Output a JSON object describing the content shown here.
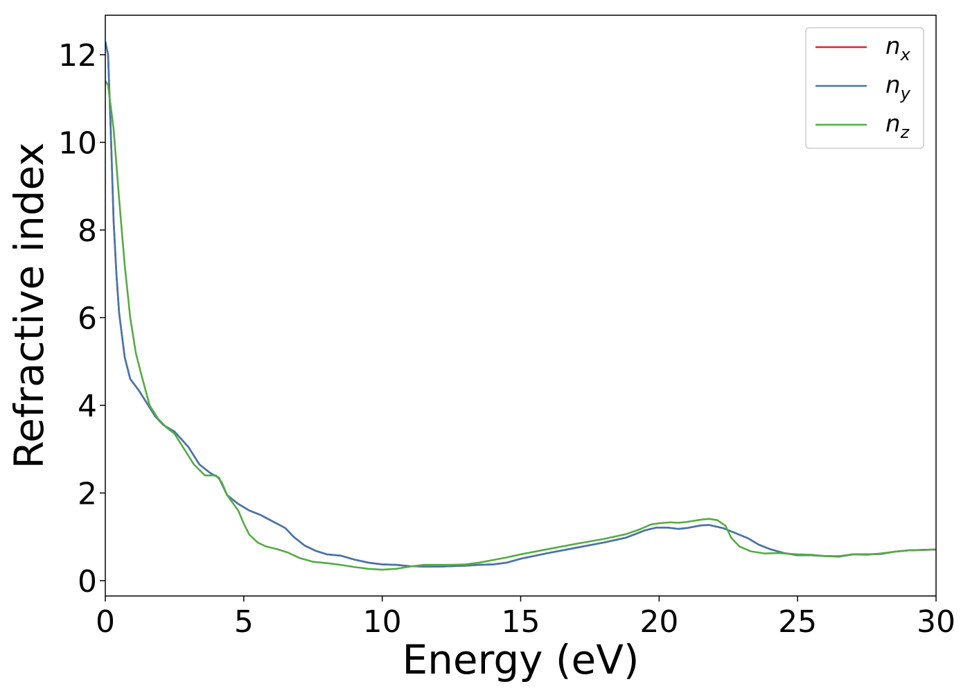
{
  "chart_data": {
    "type": "line",
    "title": "",
    "xlabel": "Energy (eV)",
    "ylabel": "Refractive index",
    "xlim": [
      0,
      30
    ],
    "ylim": [
      -0.35,
      12.9
    ],
    "xticks": [
      0,
      5,
      10,
      15,
      20,
      25,
      30
    ],
    "yticks": [
      0,
      2,
      4,
      6,
      8,
      10,
      12
    ],
    "xtick_labels": [
      "0",
      "5",
      "10",
      "15",
      "20",
      "25",
      "30"
    ],
    "ytick_labels": [
      "0",
      "2",
      "4",
      "6",
      "8",
      "10",
      "12"
    ],
    "grid": false,
    "legend": {
      "position": "top-right"
    },
    "series": [
      {
        "name": "n",
        "subscript": "x",
        "color": "#d62728",
        "points": [
          [
            0,
            12.3
          ],
          [
            0.1,
            12.0
          ],
          [
            0.2,
            10.2
          ],
          [
            0.3,
            8.2
          ],
          [
            0.4,
            7.0
          ],
          [
            0.5,
            6.1
          ],
          [
            0.7,
            5.1
          ],
          [
            0.9,
            4.6
          ],
          [
            1.2,
            4.35
          ],
          [
            1.5,
            4.05
          ],
          [
            1.8,
            3.75
          ],
          [
            2.1,
            3.55
          ],
          [
            2.5,
            3.4
          ],
          [
            3.0,
            3.05
          ],
          [
            3.4,
            2.65
          ],
          [
            3.8,
            2.45
          ],
          [
            4.1,
            2.35
          ],
          [
            4.4,
            1.95
          ],
          [
            4.8,
            1.75
          ],
          [
            5.2,
            1.6
          ],
          [
            5.6,
            1.5
          ],
          [
            5.9,
            1.4
          ],
          [
            6.2,
            1.3
          ],
          [
            6.5,
            1.2
          ],
          [
            6.8,
            1.0
          ],
          [
            7.2,
            0.8
          ],
          [
            7.6,
            0.68
          ],
          [
            8.0,
            0.6
          ],
          [
            8.5,
            0.57
          ],
          [
            9.0,
            0.48
          ],
          [
            9.5,
            0.41
          ],
          [
            10.0,
            0.37
          ],
          [
            10.5,
            0.36
          ],
          [
            11.0,
            0.33
          ],
          [
            11.5,
            0.32
          ],
          [
            12.0,
            0.32
          ],
          [
            12.5,
            0.33
          ],
          [
            13.0,
            0.34
          ],
          [
            13.5,
            0.36
          ],
          [
            14.0,
            0.37
          ],
          [
            14.5,
            0.41
          ],
          [
            15.0,
            0.5
          ],
          [
            16.0,
            0.63
          ],
          [
            17.0,
            0.75
          ],
          [
            18.0,
            0.87
          ],
          [
            18.8,
            0.98
          ],
          [
            19.5,
            1.15
          ],
          [
            19.9,
            1.21
          ],
          [
            20.3,
            1.21
          ],
          [
            20.7,
            1.18
          ],
          [
            21.0,
            1.2
          ],
          [
            21.5,
            1.26
          ],
          [
            21.8,
            1.27
          ],
          [
            22.3,
            1.2
          ],
          [
            22.7,
            1.1
          ],
          [
            23.2,
            0.97
          ],
          [
            23.6,
            0.82
          ],
          [
            24.0,
            0.72
          ],
          [
            24.5,
            0.63
          ],
          [
            25.0,
            0.58
          ],
          [
            25.5,
            0.58
          ],
          [
            26.0,
            0.56
          ],
          [
            26.5,
            0.55
          ],
          [
            27.0,
            0.6
          ],
          [
            27.5,
            0.6
          ],
          [
            28.0,
            0.61
          ],
          [
            28.5,
            0.66
          ],
          [
            29.0,
            0.69
          ],
          [
            29.5,
            0.7
          ],
          [
            30.0,
            0.71
          ]
        ]
      },
      {
        "name": "n",
        "subscript": "y",
        "color": "#4477aa",
        "points": [
          [
            0,
            12.3
          ],
          [
            0.1,
            12.0
          ],
          [
            0.2,
            10.2
          ],
          [
            0.3,
            8.2
          ],
          [
            0.4,
            7.0
          ],
          [
            0.5,
            6.1
          ],
          [
            0.7,
            5.1
          ],
          [
            0.9,
            4.6
          ],
          [
            1.2,
            4.35
          ],
          [
            1.5,
            4.05
          ],
          [
            1.8,
            3.75
          ],
          [
            2.1,
            3.55
          ],
          [
            2.5,
            3.4
          ],
          [
            3.0,
            3.05
          ],
          [
            3.4,
            2.65
          ],
          [
            3.8,
            2.45
          ],
          [
            4.1,
            2.35
          ],
          [
            4.4,
            1.95
          ],
          [
            4.8,
            1.75
          ],
          [
            5.2,
            1.6
          ],
          [
            5.6,
            1.5
          ],
          [
            5.9,
            1.4
          ],
          [
            6.2,
            1.3
          ],
          [
            6.5,
            1.2
          ],
          [
            6.8,
            1.0
          ],
          [
            7.2,
            0.8
          ],
          [
            7.6,
            0.68
          ],
          [
            8.0,
            0.6
          ],
          [
            8.5,
            0.57
          ],
          [
            9.0,
            0.48
          ],
          [
            9.5,
            0.41
          ],
          [
            10.0,
            0.37
          ],
          [
            10.5,
            0.36
          ],
          [
            11.0,
            0.33
          ],
          [
            11.5,
            0.32
          ],
          [
            12.0,
            0.32
          ],
          [
            12.5,
            0.33
          ],
          [
            13.0,
            0.34
          ],
          [
            13.5,
            0.36
          ],
          [
            14.0,
            0.37
          ],
          [
            14.5,
            0.41
          ],
          [
            15.0,
            0.5
          ],
          [
            16.0,
            0.63
          ],
          [
            17.0,
            0.75
          ],
          [
            18.0,
            0.87
          ],
          [
            18.8,
            0.98
          ],
          [
            19.5,
            1.15
          ],
          [
            19.9,
            1.21
          ],
          [
            20.3,
            1.21
          ],
          [
            20.7,
            1.18
          ],
          [
            21.0,
            1.2
          ],
          [
            21.5,
            1.26
          ],
          [
            21.8,
            1.27
          ],
          [
            22.3,
            1.2
          ],
          [
            22.7,
            1.1
          ],
          [
            23.2,
            0.97
          ],
          [
            23.6,
            0.82
          ],
          [
            24.0,
            0.72
          ],
          [
            24.5,
            0.63
          ],
          [
            25.0,
            0.58
          ],
          [
            25.5,
            0.58
          ],
          [
            26.0,
            0.56
          ],
          [
            26.5,
            0.55
          ],
          [
            27.0,
            0.6
          ],
          [
            27.5,
            0.6
          ],
          [
            28.0,
            0.61
          ],
          [
            28.5,
            0.66
          ],
          [
            29.0,
            0.69
          ],
          [
            29.5,
            0.7
          ],
          [
            30.0,
            0.71
          ]
        ]
      },
      {
        "name": "n",
        "subscript": "z",
        "color": "#55aa44",
        "points": [
          [
            0,
            11.4
          ],
          [
            0.1,
            11.3
          ],
          [
            0.3,
            10.3
          ],
          [
            0.5,
            8.7
          ],
          [
            0.7,
            7.2
          ],
          [
            0.9,
            6.0
          ],
          [
            1.1,
            5.2
          ],
          [
            1.3,
            4.7
          ],
          [
            1.6,
            4.0
          ],
          [
            1.9,
            3.7
          ],
          [
            2.2,
            3.5
          ],
          [
            2.5,
            3.35
          ],
          [
            2.8,
            3.05
          ],
          [
            3.2,
            2.65
          ],
          [
            3.6,
            2.4
          ],
          [
            4.0,
            2.4
          ],
          [
            4.2,
            2.25
          ],
          [
            4.4,
            1.95
          ],
          [
            4.8,
            1.6
          ],
          [
            5.0,
            1.3
          ],
          [
            5.2,
            1.05
          ],
          [
            5.5,
            0.87
          ],
          [
            5.8,
            0.78
          ],
          [
            6.2,
            0.72
          ],
          [
            6.6,
            0.64
          ],
          [
            7.0,
            0.52
          ],
          [
            7.5,
            0.43
          ],
          [
            8.0,
            0.4
          ],
          [
            8.5,
            0.36
          ],
          [
            9.0,
            0.31
          ],
          [
            9.5,
            0.27
          ],
          [
            10.0,
            0.25
          ],
          [
            10.5,
            0.27
          ],
          [
            11.0,
            0.32
          ],
          [
            11.5,
            0.36
          ],
          [
            12.0,
            0.36
          ],
          [
            12.5,
            0.36
          ],
          [
            13.0,
            0.37
          ],
          [
            13.5,
            0.41
          ],
          [
            14.0,
            0.47
          ],
          [
            14.5,
            0.53
          ],
          [
            15.0,
            0.6
          ],
          [
            16.0,
            0.72
          ],
          [
            17.0,
            0.84
          ],
          [
            18.0,
            0.95
          ],
          [
            18.8,
            1.06
          ],
          [
            19.3,
            1.17
          ],
          [
            19.7,
            1.28
          ],
          [
            20.0,
            1.31
          ],
          [
            20.4,
            1.33
          ],
          [
            20.7,
            1.32
          ],
          [
            21.0,
            1.34
          ],
          [
            21.5,
            1.39
          ],
          [
            21.8,
            1.41
          ],
          [
            22.1,
            1.38
          ],
          [
            22.4,
            1.25
          ],
          [
            22.6,
            0.98
          ],
          [
            22.9,
            0.78
          ],
          [
            23.3,
            0.67
          ],
          [
            23.8,
            0.62
          ],
          [
            24.3,
            0.63
          ],
          [
            25.0,
            0.6
          ],
          [
            25.5,
            0.59
          ],
          [
            26.0,
            0.56
          ],
          [
            26.5,
            0.56
          ],
          [
            27.0,
            0.6
          ],
          [
            27.5,
            0.59
          ],
          [
            28.0,
            0.62
          ],
          [
            28.5,
            0.66
          ],
          [
            29.0,
            0.69
          ],
          [
            29.5,
            0.7
          ],
          [
            30.0,
            0.71
          ]
        ]
      }
    ]
  }
}
